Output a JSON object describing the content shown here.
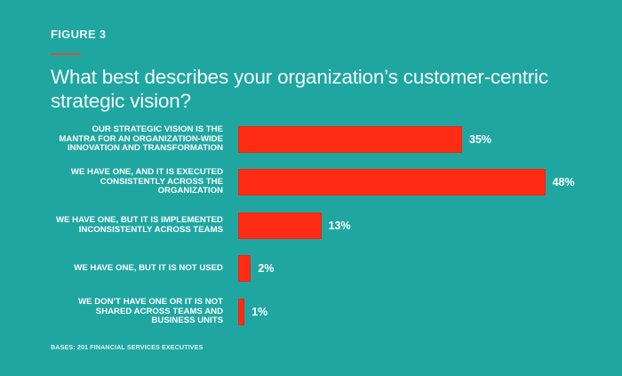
{
  "figure_label": "FIGURE 3",
  "title": "What best describes your organization’s customer-centric strategic vision?",
  "note": "BASES: 201 FINANCIAL SERVICES EXECUTIVES",
  "colors": {
    "background": "#1fa6a1",
    "bar": "#ff2b12",
    "rule": "#c9573c",
    "text": "#ffffff"
  },
  "chart_data": {
    "type": "bar",
    "orientation": "horizontal",
    "title": "What best describes your organization’s customer-centric strategic vision?",
    "categories": [
      "OUR STRATEGIC VISION IS THE MANTRA FOR AN ORGANIZATION-WIDE INNOVATION AND TRANSFORMATION",
      "WE HAVE ONE, AND IT IS EXECUTED CONSISTENTLY ACROSS THE ORGANIZATION",
      "WE HAVE ONE, BUT IT IS IMPLEMENTED INCONSISTENTLY ACROSS TEAMS",
      "WE HAVE ONE, BUT IT IS NOT USED",
      "WE DON’T HAVE ONE OR IT IS NOT SHARED ACROSS TEAMS AND BUSINESS UNITS"
    ],
    "values": [
      35,
      48,
      13,
      2,
      1
    ],
    "value_labels": [
      "35%",
      "48%",
      "13%",
      "2%",
      "1%"
    ],
    "unit": "%",
    "xlabel": "",
    "ylabel": "",
    "grid": false,
    "legend": null,
    "source_note": "BASES: 201 FINANCIAL SERVICES EXECUTIVES"
  },
  "rows": [
    {
      "label": "OUR STRATEGIC VISION IS THE\nMANTRA FOR AN ORGANIZATION-WIDE\nINNOVATION AND TRANSFORMATION",
      "value": 35,
      "value_label": "35%"
    },
    {
      "label": "WE HAVE ONE, AND IT IS EXECUTED\nCONSISTENTLY ACROSS THE\nORGANIZATION",
      "value": 48,
      "value_label": "48%"
    },
    {
      "label": "WE HAVE ONE, BUT IT IS IMPLEMENTED\nINCONSISTENTLY ACROSS TEAMS",
      "value": 13,
      "value_label": "13%"
    },
    {
      "label": "WE HAVE ONE, BUT IT IS NOT USED",
      "value": 2,
      "value_label": "2%"
    },
    {
      "label": "WE DON’T HAVE ONE OR IT IS NOT\nSHARED ACROSS TEAMS AND\nBUSINESS UNITS",
      "value": 1,
      "value_label": "1%"
    }
  ]
}
